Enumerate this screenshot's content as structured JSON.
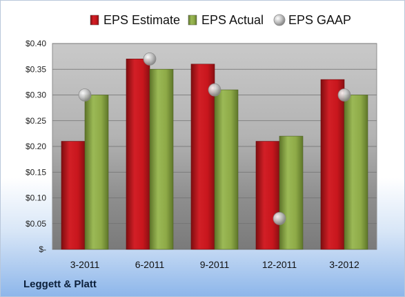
{
  "company": "Leggett & Platt",
  "chart_data": {
    "type": "bar",
    "categories": [
      "3-2011",
      "6-2011",
      "9-2011",
      "12-2011",
      "3-2012"
    ],
    "series": [
      {
        "name": "EPS Estimate",
        "type": "bar",
        "color": "#c8161d",
        "values": [
          0.21,
          0.37,
          0.36,
          0.21,
          0.33
        ]
      },
      {
        "name": "EPS Actual",
        "type": "bar",
        "color": "#8eaa47",
        "values": [
          0.3,
          0.35,
          0.31,
          0.22,
          0.3
        ]
      },
      {
        "name": "EPS GAAP",
        "type": "scatter",
        "color": "#b0b0b0",
        "values": [
          0.3,
          0.37,
          0.31,
          0.06,
          0.3
        ]
      }
    ],
    "ylim": [
      0,
      0.4
    ],
    "yticks": [
      0,
      0.05,
      0.1,
      0.15,
      0.2,
      0.25,
      0.3,
      0.35,
      0.4
    ],
    "ytick_labels": [
      "$-",
      "$0.05",
      "$0.10",
      "$0.15",
      "$0.20",
      "$0.25",
      "$0.30",
      "$0.35",
      "$0.40"
    ],
    "grid": true,
    "legend_position": "top"
  }
}
